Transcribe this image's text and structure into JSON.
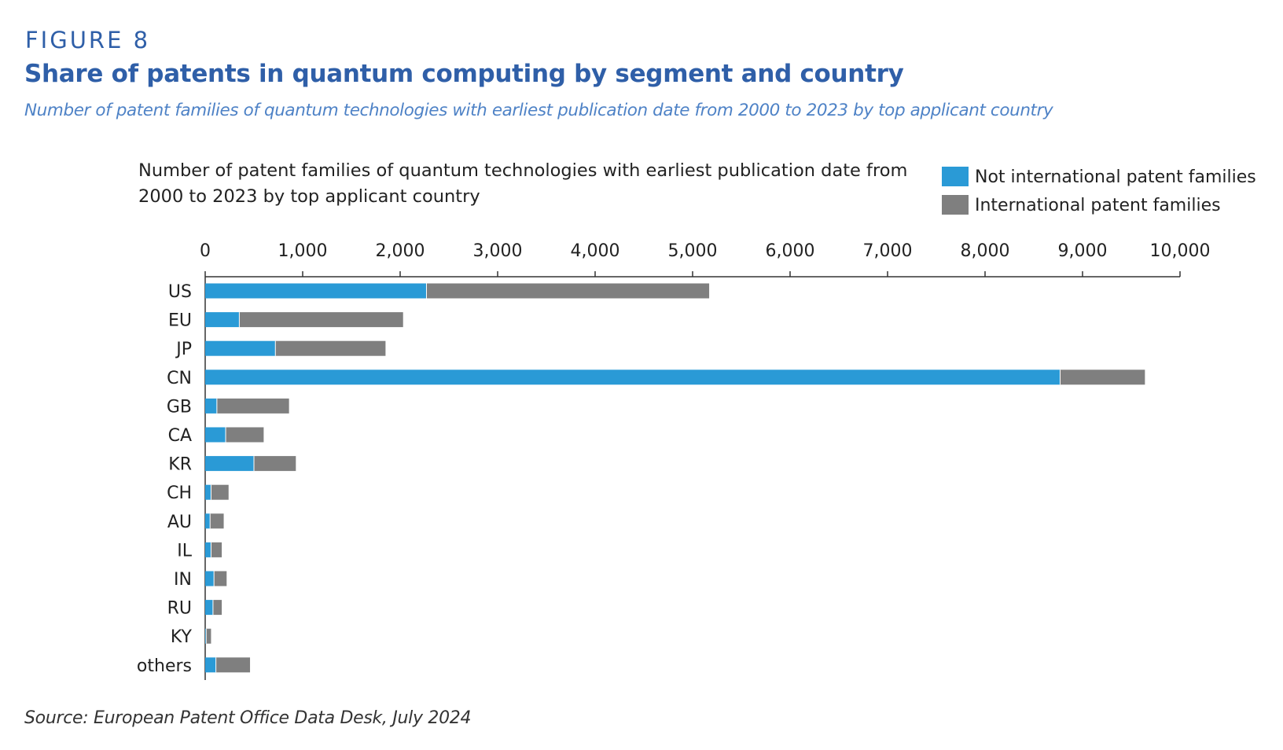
{
  "figure": {
    "label": "FIGURE 8",
    "title": "Share of patents in quantum computing by segment and country",
    "subtitle": "Number of patent families of quantum technologies with earliest publication date from 2000 to 2023 by top applicant country",
    "source": "Source: European Patent Office Data Desk, July 2024"
  },
  "colors": {
    "heading": "#2f5fa8",
    "not_international": "#2a9ad6",
    "international": "#7f7f7f",
    "axis": "#333333",
    "text": "#222222"
  },
  "chart_data": {
    "type": "bar",
    "orientation": "horizontal",
    "stacked": true,
    "title_lines": [
      "Number of patent families of quantum technologies with earliest publication date from",
      "2000 to 2023 by top applicant country"
    ],
    "categories": [
      "US",
      "EU",
      "JP",
      "CN",
      "GB",
      "CA",
      "KR",
      "CH",
      "AU",
      "IL",
      "IN",
      "RU",
      "KY",
      "others"
    ],
    "series": [
      {
        "name": "Not international patent families",
        "color_key": "not_international",
        "values": [
          2270,
          350,
          720,
          8770,
          120,
          210,
          500,
          60,
          50,
          60,
          90,
          80,
          10,
          110
        ]
      },
      {
        "name": "International patent families",
        "color_key": "international",
        "values": [
          2900,
          1680,
          1130,
          870,
          740,
          390,
          430,
          180,
          140,
          110,
          130,
          90,
          50,
          350
        ]
      }
    ],
    "xlim": [
      0,
      10000
    ],
    "xticks": [
      0,
      1000,
      2000,
      3000,
      4000,
      5000,
      6000,
      7000,
      8000,
      9000,
      10000
    ],
    "xtick_labels": [
      "0",
      "1,000",
      "2,000",
      "3,000",
      "4,000",
      "5,000",
      "6,000",
      "7,000",
      "8,000",
      "9,000",
      "10,000"
    ],
    "xaxis_position": "top",
    "legend": [
      {
        "label": "Not international patent families",
        "color_key": "not_international"
      },
      {
        "label": "International patent families",
        "color_key": "international"
      }
    ],
    "legend_position": "top-right",
    "grid": false
  }
}
